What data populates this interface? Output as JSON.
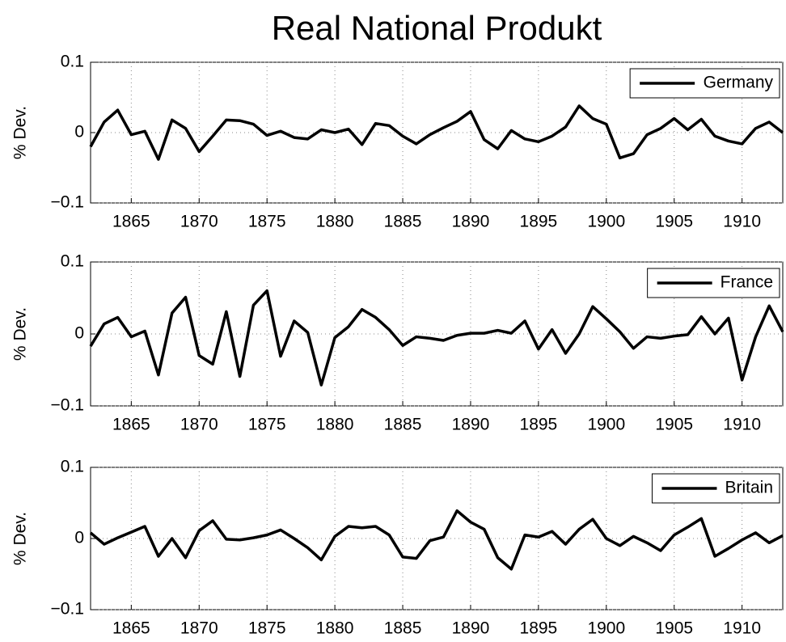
{
  "chart_data": [
    {
      "type": "line",
      "title": "Real National Produkt",
      "ylabel": "% Dev.",
      "x": [
        1862,
        1863,
        1864,
        1865,
        1866,
        1867,
        1868,
        1869,
        1870,
        1871,
        1872,
        1873,
        1874,
        1875,
        1876,
        1877,
        1878,
        1879,
        1880,
        1881,
        1882,
        1883,
        1884,
        1885,
        1886,
        1887,
        1888,
        1889,
        1890,
        1891,
        1892,
        1893,
        1894,
        1895,
        1896,
        1897,
        1898,
        1899,
        1900,
        1901,
        1902,
        1903,
        1904,
        1905,
        1906,
        1907,
        1908,
        1909,
        1910,
        1911,
        1912,
        1913
      ],
      "series": [
        {
          "name": "Germany",
          "color": "#000000",
          "values": [
            -0.02,
            0.015,
            0.032,
            -0.003,
            0.002,
            -0.038,
            0.018,
            0.006,
            -0.027,
            -0.005,
            0.018,
            0.017,
            0.012,
            -0.004,
            0.002,
            -0.007,
            -0.009,
            0.004,
            0.0,
            0.005,
            -0.017,
            0.013,
            0.01,
            -0.005,
            -0.016,
            -0.003,
            0.007,
            0.016,
            0.03,
            -0.01,
            -0.023,
            0.003,
            -0.009,
            -0.013,
            -0.005,
            0.008,
            0.038,
            0.02,
            0.012,
            -0.036,
            -0.03,
            -0.003,
            0.006,
            0.02,
            0.004,
            0.019,
            -0.005,
            -0.012,
            -0.016,
            0.006,
            0.015,
            0.0
          ]
        }
      ],
      "xlim": [
        1862,
        1913
      ],
      "xticks": [
        1865,
        1870,
        1875,
        1880,
        1885,
        1890,
        1895,
        1900,
        1905,
        1910
      ],
      "ylim": [
        -0.1,
        0.1
      ],
      "yticks": [
        {
          "value": -0.1,
          "label": "−0.1"
        },
        0,
        0.1
      ],
      "grid": true,
      "legend": "northeast"
    },
    {
      "type": "line",
      "ylabel": "% Dev.",
      "x": [
        1862,
        1863,
        1864,
        1865,
        1866,
        1867,
        1868,
        1869,
        1870,
        1871,
        1872,
        1873,
        1874,
        1875,
        1876,
        1877,
        1878,
        1879,
        1880,
        1881,
        1882,
        1883,
        1884,
        1885,
        1886,
        1887,
        1888,
        1889,
        1890,
        1891,
        1892,
        1893,
        1894,
        1895,
        1896,
        1897,
        1898,
        1899,
        1900,
        1901,
        1902,
        1903,
        1904,
        1905,
        1906,
        1907,
        1908,
        1909,
        1910,
        1911,
        1912,
        1913
      ],
      "series": [
        {
          "name": "France",
          "color": "#000000",
          "values": [
            -0.017,
            0.014,
            0.023,
            -0.004,
            0.004,
            -0.057,
            0.029,
            0.051,
            -0.03,
            -0.042,
            0.031,
            -0.059,
            0.04,
            0.06,
            -0.031,
            0.018,
            0.002,
            -0.071,
            -0.005,
            0.01,
            0.034,
            0.023,
            0.006,
            -0.016,
            -0.004,
            -0.006,
            -0.009,
            -0.002,
            0.001,
            0.001,
            0.005,
            0.001,
            0.018,
            -0.021,
            0.006,
            -0.027,
            0.0,
            0.038,
            0.021,
            0.003,
            -0.02,
            -0.004,
            -0.006,
            -0.003,
            -0.001,
            0.024,
            0.0,
            0.022,
            -0.064,
            -0.004,
            0.039,
            0.003
          ]
        }
      ],
      "xlim": [
        1862,
        1913
      ],
      "xticks": [
        1865,
        1870,
        1875,
        1880,
        1885,
        1890,
        1895,
        1900,
        1905,
        1910
      ],
      "ylim": [
        -0.1,
        0.1
      ],
      "yticks": [
        {
          "value": -0.1,
          "label": "−0.1"
        },
        0,
        0.1
      ],
      "grid": true,
      "legend": "northeast"
    },
    {
      "type": "line",
      "ylabel": "% Dev.",
      "x": [
        1862,
        1863,
        1864,
        1865,
        1866,
        1867,
        1868,
        1869,
        1870,
        1871,
        1872,
        1873,
        1874,
        1875,
        1876,
        1877,
        1878,
        1879,
        1880,
        1881,
        1882,
        1883,
        1884,
        1885,
        1886,
        1887,
        1888,
        1889,
        1890,
        1891,
        1892,
        1893,
        1894,
        1895,
        1896,
        1897,
        1898,
        1899,
        1900,
        1901,
        1902,
        1903,
        1904,
        1905,
        1906,
        1907,
        1908,
        1909,
        1910,
        1911,
        1912,
        1913
      ],
      "series": [
        {
          "name": "Britain",
          "color": "#000000",
          "values": [
            0.008,
            -0.008,
            0.001,
            0.009,
            0.017,
            -0.025,
            0.0,
            -0.027,
            0.011,
            0.025,
            -0.001,
            -0.002,
            0.001,
            0.005,
            0.012,
            0.0,
            -0.013,
            -0.03,
            0.003,
            0.017,
            0.015,
            0.017,
            0.005,
            -0.026,
            -0.028,
            -0.003,
            0.002,
            0.039,
            0.023,
            0.013,
            -0.027,
            -0.043,
            0.005,
            0.002,
            0.01,
            -0.008,
            0.013,
            0.027,
            0.0,
            -0.01,
            0.003,
            -0.006,
            -0.017,
            0.005,
            0.016,
            0.028,
            -0.025,
            -0.014,
            -0.002,
            0.008,
            -0.006,
            0.004
          ]
        }
      ],
      "xlim": [
        1862,
        1913
      ],
      "xticks": [
        1865,
        1870,
        1875,
        1880,
        1885,
        1890,
        1895,
        1900,
        1905,
        1910
      ],
      "ylim": [
        -0.1,
        0.1
      ],
      "yticks": [
        {
          "value": -0.1,
          "label": "−0.1"
        },
        0,
        0.1
      ],
      "grid": true,
      "legend": "northeast"
    }
  ]
}
